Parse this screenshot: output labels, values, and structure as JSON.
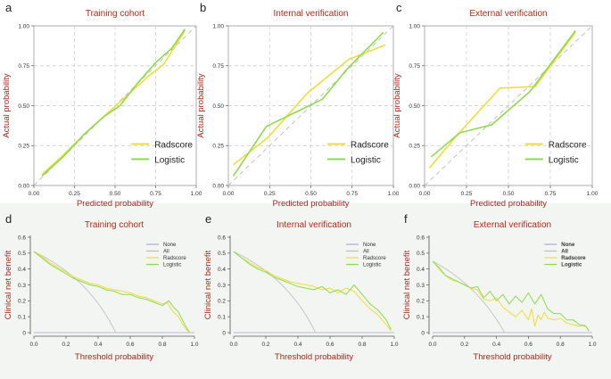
{
  "colors": {
    "radscore": "#f0dc3c",
    "logistic": "#8fd94f",
    "none": "#a9a9d9",
    "all": "#bdbdbd",
    "title_red": "#b22a1a",
    "axis_label_red": "#a0281a",
    "grid": "#c8c8c8",
    "panel_border": "#9a9a9a",
    "ideal": "#bcbcbc",
    "band": "#f2f5f1"
  },
  "chart_data": [
    {
      "panel_letter": "a",
      "type": "line",
      "kind": "calibration",
      "title": "Training cohort",
      "xlabel": "Predicted probability",
      "ylabel": "Actual probability",
      "xlim": [
        0,
        1
      ],
      "ylim": [
        0,
        1
      ],
      "xticks": [
        "0.00",
        "0.25",
        "0.50",
        "0.75",
        "1.00"
      ],
      "yticks": [
        "0.00",
        "0.25",
        "0.50",
        "0.75",
        "1.00"
      ],
      "grid": true,
      "legend": [
        "Radscore",
        "Logistic"
      ],
      "series": [
        {
          "name": "Radscore",
          "key": "radscore",
          "x": [
            0.05,
            0.17,
            0.33,
            0.45,
            0.57,
            0.7,
            0.8,
            0.93
          ],
          "y": [
            0.07,
            0.18,
            0.34,
            0.45,
            0.56,
            0.68,
            0.76,
            0.97
          ]
        },
        {
          "name": "Logistic",
          "key": "logistic",
          "x": [
            0.05,
            0.18,
            0.31,
            0.43,
            0.53,
            0.63,
            0.75,
            0.85,
            0.93
          ],
          "y": [
            0.06,
            0.18,
            0.32,
            0.43,
            0.5,
            0.63,
            0.77,
            0.86,
            0.98
          ]
        }
      ]
    },
    {
      "panel_letter": "b",
      "type": "line",
      "kind": "calibration",
      "title": "Internal verification",
      "xlabel": "Predicted probability",
      "ylabel": "Actual probability",
      "xlim": [
        0,
        1
      ],
      "ylim": [
        0,
        1
      ],
      "xticks": [
        "0.00",
        "0.25",
        "0.50",
        "0.75",
        "1.00"
      ],
      "yticks": [
        "0.00",
        "0.25",
        "0.50",
        "0.75",
        "1.00"
      ],
      "grid": true,
      "legend": [
        "Radscore",
        "Logistic"
      ],
      "series": [
        {
          "name": "Radscore",
          "key": "radscore",
          "x": [
            0.03,
            0.24,
            0.48,
            0.73,
            0.95
          ],
          "y": [
            0.13,
            0.3,
            0.58,
            0.79,
            0.88
          ]
        },
        {
          "name": "Logistic",
          "key": "logistic",
          "x": [
            0.03,
            0.23,
            0.57,
            0.72,
            0.94
          ],
          "y": [
            0.06,
            0.37,
            0.54,
            0.73,
            0.96
          ]
        }
      ]
    },
    {
      "panel_letter": "c",
      "type": "line",
      "kind": "calibration",
      "title": "External verification",
      "xlabel": "Predicted probability",
      "ylabel": "Actual probability",
      "xlim": [
        0,
        1
      ],
      "ylim": [
        0,
        1
      ],
      "xticks": [
        "0.00",
        "0.25",
        "0.50",
        "0.75",
        "1.00"
      ],
      "yticks": [
        "0.00",
        "0.25",
        "0.50",
        "0.75",
        "1.00"
      ],
      "grid": true,
      "legend": [
        "Radscore",
        "Logistic"
      ],
      "series": [
        {
          "name": "Radscore",
          "key": "radscore",
          "x": [
            0.03,
            0.19,
            0.45,
            0.66,
            0.9
          ],
          "y": [
            0.11,
            0.31,
            0.61,
            0.62,
            0.96
          ]
        },
        {
          "name": "Logistic",
          "key": "logistic",
          "x": [
            0.04,
            0.21,
            0.4,
            0.63,
            0.9
          ],
          "y": [
            0.18,
            0.33,
            0.38,
            0.59,
            0.97
          ]
        }
      ]
    },
    {
      "panel_letter": "d",
      "type": "line",
      "kind": "dca",
      "title": "Training cohort",
      "xlabel": "Threshold probability",
      "ylabel": "Clinical net benefit",
      "xlim": [
        0,
        1
      ],
      "ylim": [
        0,
        0.6
      ],
      "xticks": [
        "0.0",
        "0.2",
        "0.4",
        "0.6",
        "0.8",
        "1.0"
      ],
      "yticks": [
        "0",
        "0.1",
        "0.2",
        "0.3",
        "0.4",
        "0.5",
        "0.6"
      ],
      "grid": false,
      "legend_bold": false,
      "legend": [
        "None",
        "All",
        "Radscore",
        "Logistic"
      ],
      "series": [
        {
          "name": "None",
          "key": "none",
          "x": [
            0,
            1
          ],
          "y": [
            0,
            0
          ]
        },
        {
          "name": "All",
          "key": "all",
          "prevalence": 0.51
        },
        {
          "name": "Radscore",
          "key": "radscore",
          "x": [
            0,
            0.05,
            0.1,
            0.15,
            0.2,
            0.25,
            0.3,
            0.35,
            0.4,
            0.45,
            0.5,
            0.55,
            0.6,
            0.65,
            0.7,
            0.75,
            0.8,
            0.83,
            0.86,
            0.9,
            0.94,
            0.97
          ],
          "y": [
            0.51,
            0.48,
            0.44,
            0.41,
            0.38,
            0.35,
            0.33,
            0.31,
            0.3,
            0.28,
            0.27,
            0.26,
            0.25,
            0.23,
            0.22,
            0.2,
            0.18,
            0.19,
            0.14,
            0.1,
            0.03,
            0.0
          ]
        },
        {
          "name": "Logistic",
          "key": "logistic",
          "x": [
            0,
            0.05,
            0.1,
            0.15,
            0.2,
            0.25,
            0.3,
            0.35,
            0.4,
            0.45,
            0.5,
            0.55,
            0.6,
            0.65,
            0.7,
            0.75,
            0.8,
            0.84,
            0.87,
            0.9,
            0.94,
            0.97
          ],
          "y": [
            0.51,
            0.47,
            0.43,
            0.4,
            0.37,
            0.34,
            0.32,
            0.3,
            0.29,
            0.27,
            0.26,
            0.24,
            0.24,
            0.22,
            0.21,
            0.19,
            0.17,
            0.2,
            0.16,
            0.13,
            0.05,
            0.0
          ]
        }
      ]
    },
    {
      "panel_letter": "e",
      "type": "line",
      "kind": "dca",
      "title": "Internal verification",
      "xlabel": "Threshold probability",
      "ylabel": "Clinical net benefit",
      "xlim": [
        0,
        1
      ],
      "ylim": [
        0,
        0.6
      ],
      "xticks": [
        "0.0",
        "0.2",
        "0.4",
        "0.6",
        "0.8",
        "1.0"
      ],
      "yticks": [
        "0",
        "0.1",
        "0.2",
        "0.3",
        "0.4",
        "0.5",
        "0.6"
      ],
      "grid": false,
      "legend_bold": false,
      "legend": [
        "None",
        "All",
        "Radscore",
        "Logistic"
      ],
      "series": [
        {
          "name": "None",
          "key": "none",
          "x": [
            0,
            1
          ],
          "y": [
            0,
            0
          ]
        },
        {
          "name": "All",
          "key": "all",
          "prevalence": 0.51
        },
        {
          "name": "Radscore",
          "key": "radscore",
          "x": [
            0,
            0.05,
            0.1,
            0.15,
            0.2,
            0.25,
            0.3,
            0.35,
            0.4,
            0.45,
            0.5,
            0.55,
            0.6,
            0.65,
            0.7,
            0.75,
            0.8,
            0.85,
            0.9,
            0.95,
            0.98
          ],
          "y": [
            0.51,
            0.47,
            0.44,
            0.41,
            0.39,
            0.36,
            0.34,
            0.32,
            0.31,
            0.3,
            0.29,
            0.27,
            0.28,
            0.25,
            0.28,
            0.26,
            0.2,
            0.15,
            0.11,
            0.05,
            0.01
          ]
        },
        {
          "name": "Logistic",
          "key": "logistic",
          "x": [
            0,
            0.05,
            0.1,
            0.15,
            0.2,
            0.25,
            0.3,
            0.35,
            0.4,
            0.45,
            0.5,
            0.55,
            0.6,
            0.65,
            0.7,
            0.75,
            0.8,
            0.85,
            0.9,
            0.95,
            0.98
          ],
          "y": [
            0.51,
            0.47,
            0.43,
            0.4,
            0.38,
            0.35,
            0.33,
            0.31,
            0.29,
            0.28,
            0.27,
            0.29,
            0.25,
            0.27,
            0.24,
            0.3,
            0.24,
            0.18,
            0.14,
            0.08,
            0.02
          ]
        }
      ]
    },
    {
      "panel_letter": "f",
      "type": "line",
      "kind": "dca",
      "title": "External verification",
      "xlabel": "Threshold probability",
      "ylabel": "Clinical net benefit",
      "xlim": [
        0,
        1
      ],
      "ylim": [
        0,
        0.6
      ],
      "xticks": [
        "0.0",
        "0.2",
        "0.4",
        "0.6",
        "0.8",
        "1.0"
      ],
      "yticks": [
        "0",
        "0.1",
        "0.2",
        "0.3",
        "0.4",
        "0.5",
        "0.6"
      ],
      "grid": false,
      "legend_bold": true,
      "legend": [
        "None",
        "All",
        "Radscore",
        "Logistic"
      ],
      "series": [
        {
          "name": "None",
          "key": "none",
          "x": [
            0,
            1
          ],
          "y": [
            0,
            0
          ]
        },
        {
          "name": "All",
          "key": "all",
          "prevalence": 0.45
        },
        {
          "name": "Radscore",
          "key": "radscore",
          "x": [
            0,
            0.04,
            0.08,
            0.12,
            0.16,
            0.2,
            0.24,
            0.28,
            0.32,
            0.36,
            0.4,
            0.44,
            0.48,
            0.52,
            0.56,
            0.6,
            0.62,
            0.64,
            0.66,
            0.68,
            0.7,
            0.72,
            0.76,
            0.8,
            0.84,
            0.88,
            0.92,
            0.95,
            0.98
          ],
          "y": [
            0.45,
            0.4,
            0.36,
            0.33,
            0.32,
            0.3,
            0.28,
            0.27,
            0.21,
            0.2,
            0.22,
            0.16,
            0.13,
            0.1,
            0.14,
            0.08,
            0.15,
            0.04,
            0.11,
            0.08,
            0.13,
            0.09,
            0.08,
            0.09,
            0.06,
            0.05,
            0.04,
            0.05,
            0.01
          ]
        },
        {
          "name": "Logistic",
          "key": "logistic",
          "x": [
            0,
            0.04,
            0.08,
            0.12,
            0.16,
            0.2,
            0.24,
            0.28,
            0.32,
            0.36,
            0.4,
            0.44,
            0.48,
            0.52,
            0.56,
            0.6,
            0.64,
            0.68,
            0.72,
            0.76,
            0.8,
            0.84,
            0.88,
            0.92,
            0.96,
            0.98
          ],
          "y": [
            0.45,
            0.41,
            0.36,
            0.34,
            0.32,
            0.3,
            0.28,
            0.29,
            0.22,
            0.26,
            0.2,
            0.24,
            0.18,
            0.23,
            0.19,
            0.25,
            0.18,
            0.24,
            0.15,
            0.12,
            0.12,
            0.08,
            0.08,
            0.05,
            0.04,
            0.01
          ]
        }
      ]
    }
  ]
}
